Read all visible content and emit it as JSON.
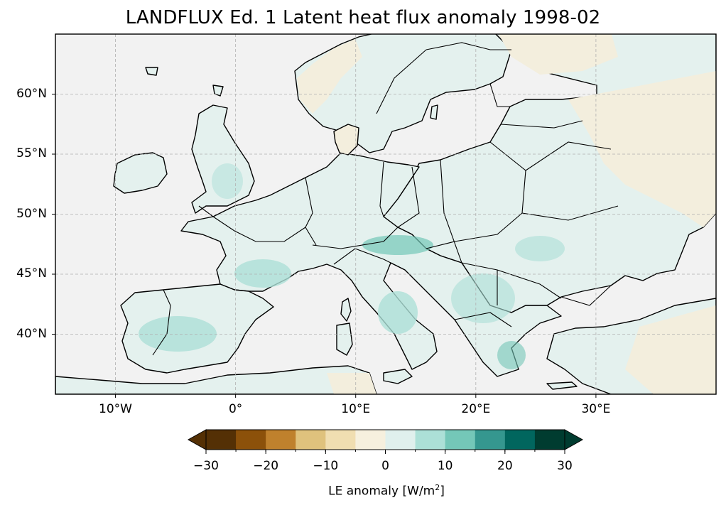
{
  "title": "LANDFLUX Ed. 1 Latent heat flux anomaly 1998-02",
  "map": {
    "extent": {
      "lon": [
        -15,
        40
      ],
      "lat": [
        35,
        65
      ]
    },
    "lat_ticks": [
      {
        "value": 60,
        "label": "60°N"
      },
      {
        "value": 55,
        "label": "55°N"
      },
      {
        "value": 50,
        "label": "50°N"
      },
      {
        "value": 45,
        "label": "45°N"
      },
      {
        "value": 40,
        "label": "40°N"
      }
    ],
    "lon_ticks": [
      {
        "value": -10,
        "label": "10°W"
      },
      {
        "value": 0,
        "label": "0°"
      },
      {
        "value": 10,
        "label": "10°E"
      },
      {
        "value": 20,
        "label": "20°E"
      },
      {
        "value": 30,
        "label": "30°E"
      }
    ],
    "gridlines": true,
    "colors": {
      "ocean": "#f2f2f2",
      "coast": "#000000",
      "grid": "#b0b0b0"
    }
  },
  "colorbar": {
    "label_prefix": "LE anomaly [W/m",
    "label_sup": "2",
    "label_suffix": "]",
    "levels": [
      -30,
      -25,
      -20,
      -15,
      -10,
      -5,
      0,
      5,
      10,
      15,
      20,
      25,
      30
    ],
    "tick_labels": [
      {
        "value": -30,
        "label": "−30"
      },
      {
        "value": -20,
        "label": "−20"
      },
      {
        "value": -10,
        "label": "−10"
      },
      {
        "value": 0,
        "label": "0"
      },
      {
        "value": 10,
        "label": "10"
      },
      {
        "value": 20,
        "label": "20"
      },
      {
        "value": 30,
        "label": "30"
      }
    ],
    "colors": [
      "#543005",
      "#8c510a",
      "#bf812d",
      "#dfc27d",
      "#f0deb1",
      "#f6f0de",
      "#e0f0ed",
      "#ace0d7",
      "#74c7b8",
      "#35978f",
      "#01665e",
      "#003c30"
    ],
    "extend": "both"
  }
}
